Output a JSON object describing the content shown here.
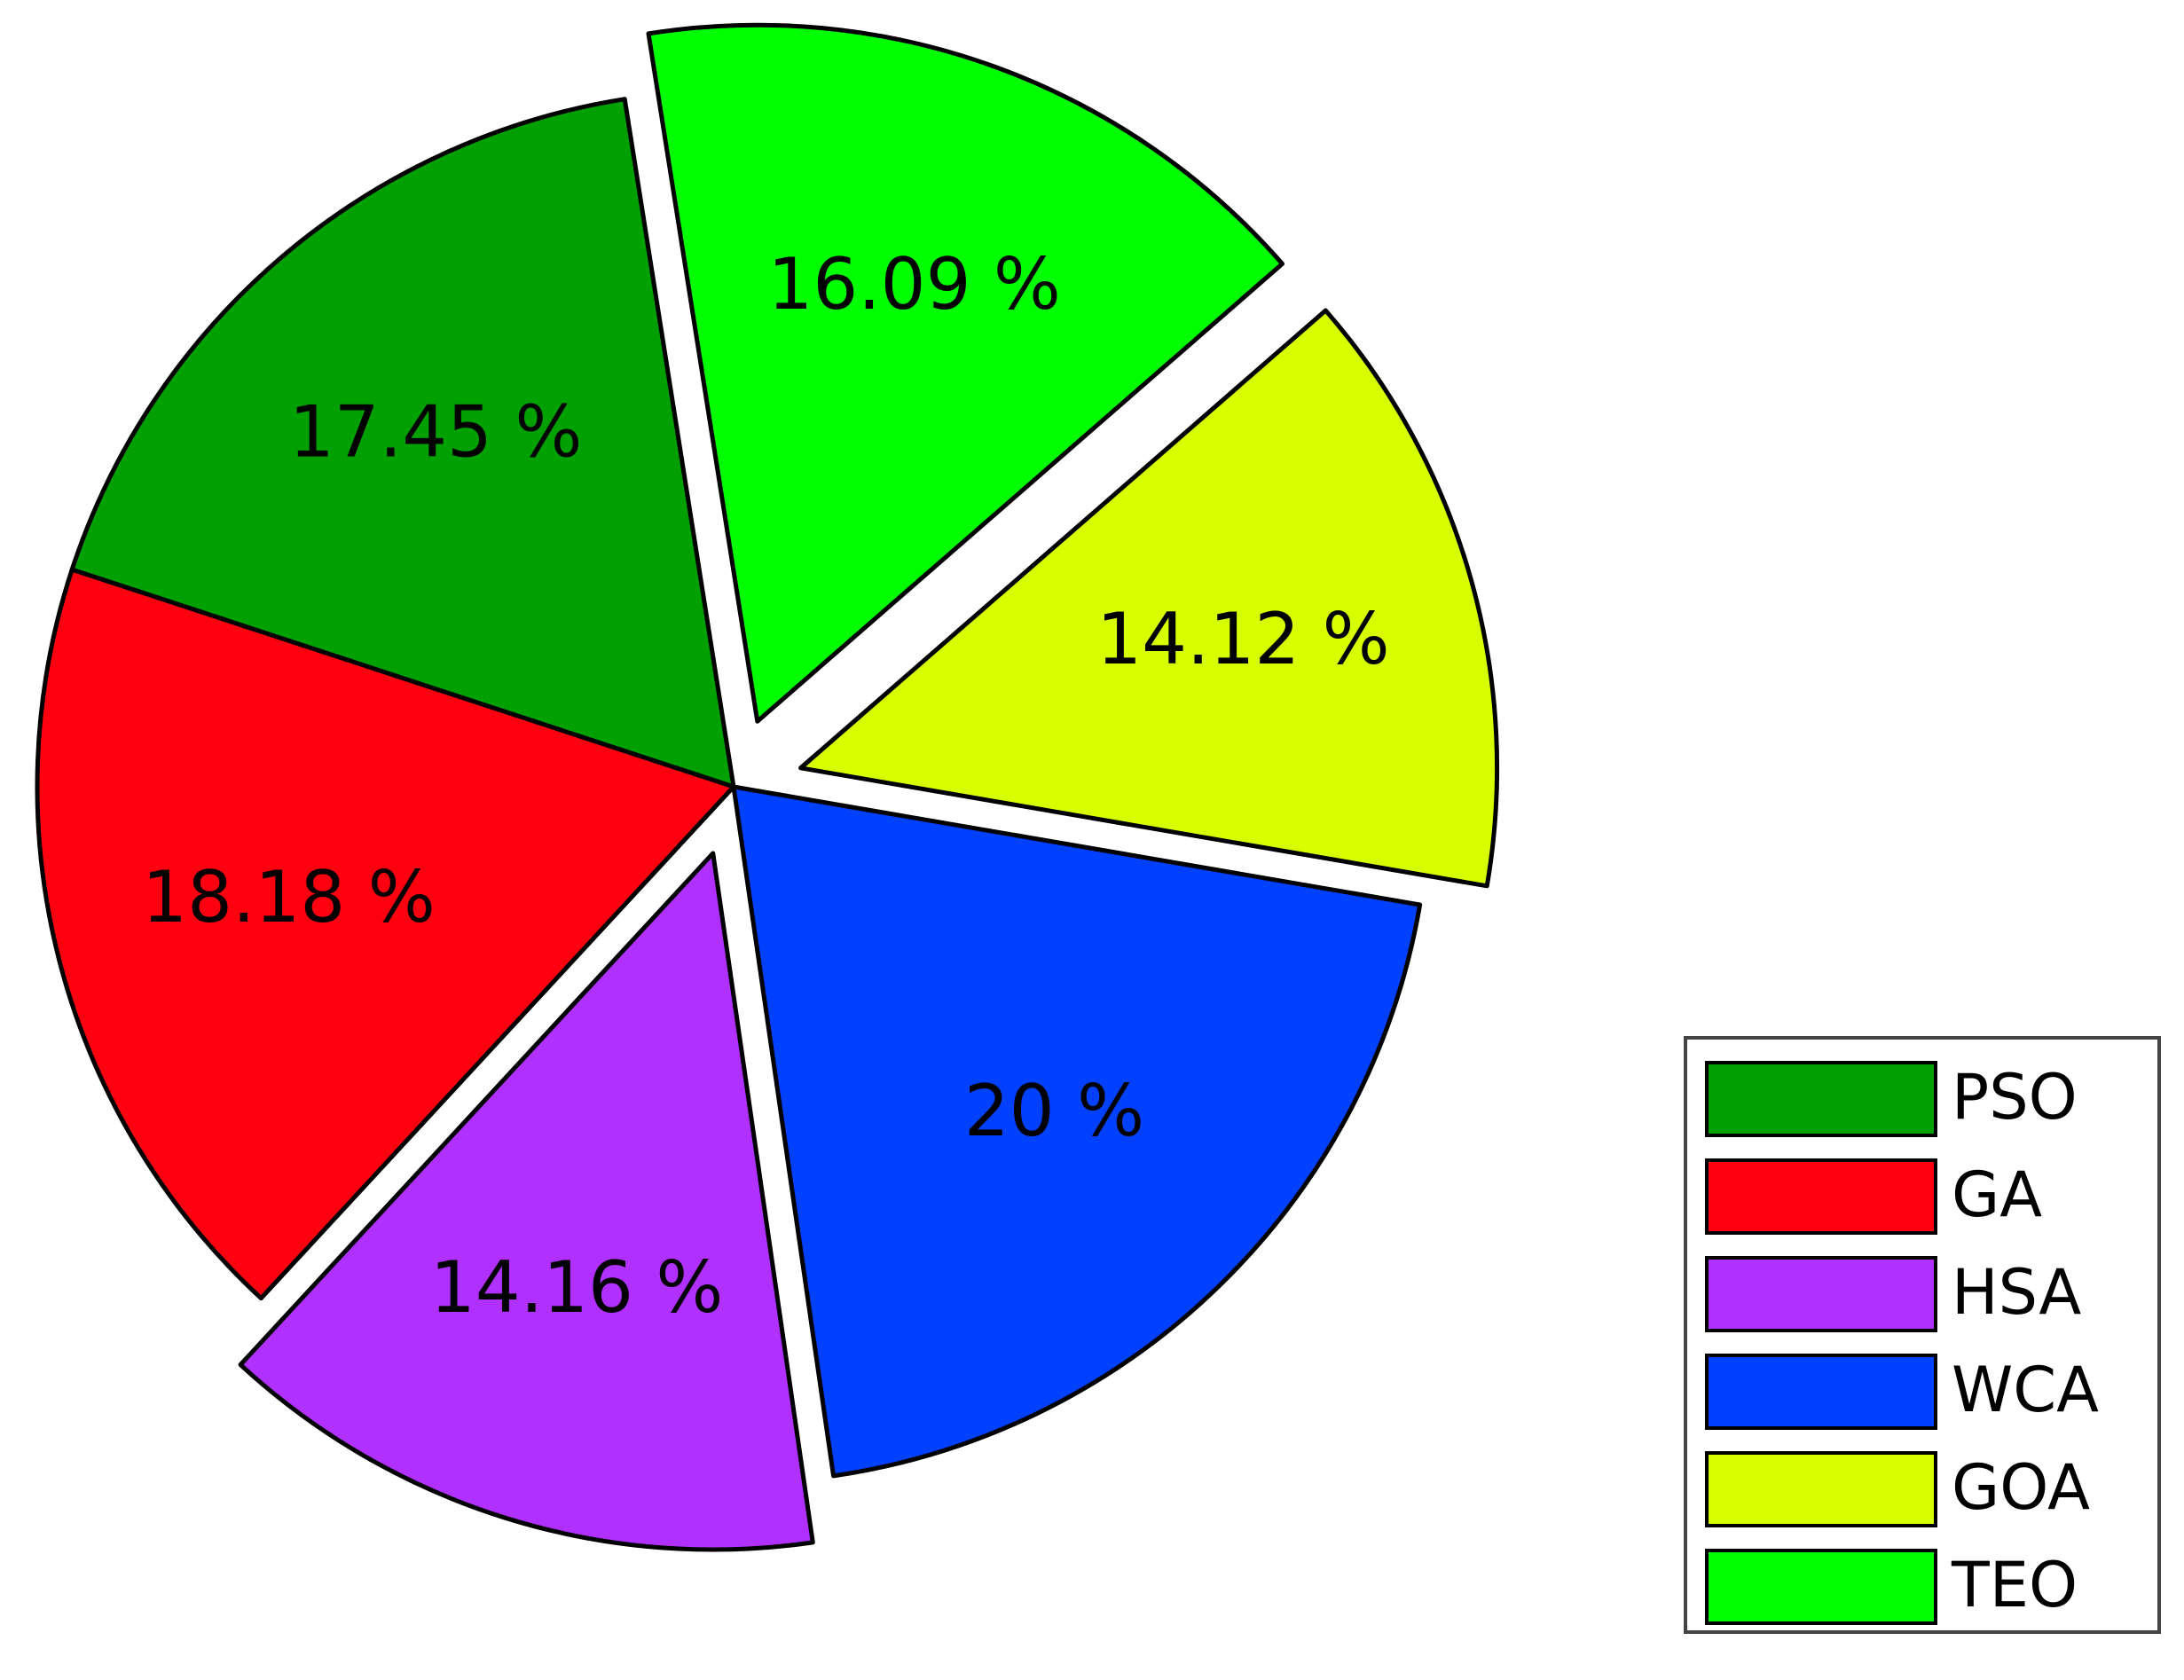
{
  "chart_data": {
    "type": "pie",
    "categories": [
      "PSO",
      "GA",
      "HSA",
      "WCA",
      "GOA",
      "TEO"
    ],
    "values": [
      17.45,
      18.18,
      14.16,
      20,
      14.12,
      16.09
    ],
    "value_labels": [
      "17.45 %",
      "18.18 %",
      "14.16 %",
      "20 %",
      "14.12 %",
      "16.09 %"
    ],
    "colors": [
      "#00a000",
      "#ff0010",
      "#b030ff",
      "#0040ff",
      "#d8ff00",
      "#00ff00"
    ],
    "exploded": [
      false,
      false,
      true,
      false,
      true,
      true
    ],
    "legend": "lower right"
  }
}
